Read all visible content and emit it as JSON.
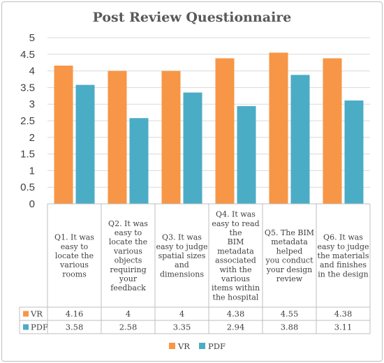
{
  "chart_data": {
    "type": "bar",
    "title": "Post Review Questionnaire",
    "categories": [
      "Q1. It was easy to locate the various rooms",
      "Q2. It was easy to locate the various objects requiring your feedback",
      "Q3. It was easy to judge spatial sizes and dimensions",
      "Q4. It was easy to read the BIM metadata associated with the various items within the hospital",
      "Q5. The BIM metadata helped you conduct your design review",
      "Q6. It was easy to judge the materials and finishes in the design"
    ],
    "category_lines": [
      [
        "Q1. It was",
        "easy to",
        "locate the",
        "various",
        "rooms"
      ],
      [
        "Q2. It was",
        "easy to",
        "locate the",
        "various",
        "objects",
        "requiring",
        "your",
        "feedback"
      ],
      [
        "Q3. It was",
        "easy to judge",
        "spatial sizes",
        "and",
        "dimensions"
      ],
      [
        "Q4. It was",
        "easy to read",
        "the",
        "BIM",
        "metadata",
        "associated",
        "with the",
        "various",
        "items within",
        "the hospital"
      ],
      [
        "Q5. The BIM",
        "metadata",
        "helped",
        "you conduct",
        "your design",
        "review"
      ],
      [
        "Q6. It was",
        "easy to judge",
        "the materials",
        "and finishes",
        "in the design"
      ]
    ],
    "series": [
      {
        "name": "VR",
        "color": "#f79646",
        "values": [
          4.16,
          4,
          4,
          4.38,
          4.55,
          4.38
        ],
        "labels": [
          "4.16",
          "4",
          "4",
          "4.38",
          "4.55",
          "4.38"
        ]
      },
      {
        "name": "PDF",
        "color": "#4bacc6",
        "values": [
          3.58,
          2.58,
          3.35,
          2.94,
          3.88,
          3.11
        ],
        "labels": [
          "3.58",
          "2.58",
          "3.35",
          "2.94",
          "3.88",
          "3.11"
        ]
      }
    ],
    "ylim": [
      0,
      5
    ],
    "yticks": [
      "0",
      "0.5",
      "1",
      "1.5",
      "2",
      "2.5",
      "3",
      "3.5",
      "4",
      "4.5",
      "5"
    ],
    "grid": true,
    "legend": "bottom",
    "data_table": true
  }
}
